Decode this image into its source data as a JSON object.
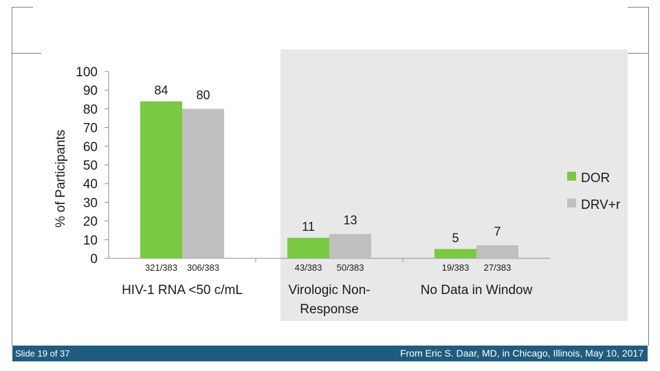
{
  "slide": {
    "number_text": "Slide 19 of 37",
    "credit": "From Eric S. Daar, MD, in Chicago, Illinois, May 10, 2017"
  },
  "colors": {
    "dor": "#7ac943",
    "drv": "#bfbfbf",
    "footer": "#1f5c7f",
    "right_panel": "#e6e6e6"
  },
  "chart_data": {
    "type": "bar",
    "ylabel": "% of Participants",
    "ylim": [
      0,
      100
    ],
    "yticks": [
      "0",
      "10",
      "20",
      "30",
      "40",
      "50",
      "60",
      "70",
      "80",
      "90",
      "100"
    ],
    "categories": [
      "HIV-1 RNA <50 c/mL",
      "Virologic Non-Response",
      "No Data in Window"
    ],
    "category_lines": [
      [
        "HIV-1 RNA <50 c/mL"
      ],
      [
        "Virologic Non-",
        "Response"
      ],
      [
        "No Data in Window"
      ]
    ],
    "series": [
      {
        "name": "DOR",
        "values": [
          84,
          11,
          5
        ],
        "counts": [
          "321/383",
          "43/383",
          "19/383"
        ]
      },
      {
        "name": "DRV+r",
        "values": [
          80,
          13,
          7
        ],
        "counts": [
          "306/383",
          "50/383",
          "27/383"
        ]
      }
    ],
    "legend": [
      "DOR",
      "DRV+r"
    ],
    "legend_position": "right"
  }
}
